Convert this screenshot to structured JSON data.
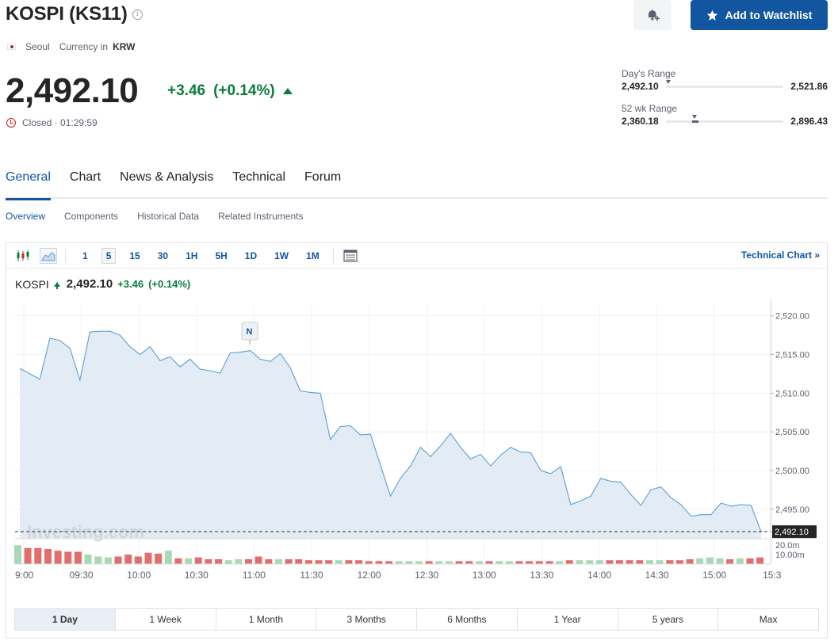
{
  "header": {
    "title": "KOSPI (KS11)",
    "info_icon": "info-icon",
    "bell_icon": "bell-plus-icon",
    "watchlist_label": "Add to Watchlist",
    "watchlist_icon": "star-icon",
    "location": "Seoul",
    "currency_label": "Currency in",
    "currency": "KRW"
  },
  "quote": {
    "price": "2,492.10",
    "change": "+3.46",
    "change_pct": "(+0.14%)",
    "status": "Closed · 01:29:59",
    "up_color": "#0a7c3e"
  },
  "ranges": {
    "day_label": "Day's Range",
    "day_low": "2,492.10",
    "day_high": "2,521.86",
    "day_fraction": 0.0,
    "wk52_label": "52 wk Range",
    "wk52_low": "2,360.18",
    "wk52_high": "2,896.43",
    "wk52_fraction": 0.246
  },
  "tabs": [
    "General",
    "Chart",
    "News & Analysis",
    "Technical",
    "Forum"
  ],
  "subtabs": [
    "Overview",
    "Components",
    "Historical Data",
    "Related Instruments"
  ],
  "toolbar": {
    "candle_icon": "candlestick-icon",
    "area_icon": "area-chart-icon",
    "timeframes": [
      "1",
      "5",
      "15",
      "30",
      "1H",
      "5H",
      "1D",
      "1W",
      "1M"
    ],
    "active_timeframe": "5",
    "table_icon": "table-icon",
    "technical_link": "Technical Chart »"
  },
  "legend": {
    "name": "KOSPI",
    "value": "2,492.10",
    "change": "+3.46",
    "change_pct": "(+0.14%)"
  },
  "watermark": "Investing.com",
  "news_marker": "N",
  "chart_data": {
    "type": "area",
    "y_ticks": [
      "2,520.00",
      "2,515.00",
      "2,510.00",
      "2,505.00",
      "2,500.00",
      "2,495.00"
    ],
    "y_tick_values": [
      2520,
      2515,
      2510,
      2505,
      2500,
      2495
    ],
    "ylim": [
      2491.2,
      2521.4
    ],
    "last_label": "2,492.10",
    "last_value": 2492.1,
    "x_labels": [
      "9:00",
      "09:30",
      "10:00",
      "10:30",
      "11:00",
      "11:30",
      "12:00",
      "12:30",
      "13:00",
      "13:30",
      "14:00",
      "14:30",
      "15:00",
      "15:3"
    ],
    "values": [
      2513.2,
      2512.5,
      2511.8,
      2517.1,
      2516.8,
      2515.8,
      2511.7,
      2517.9,
      2518.0,
      2518.0,
      2517.5,
      2516.0,
      2515.0,
      2516.0,
      2514.2,
      2514.7,
      2513.4,
      2514.4,
      2513.1,
      2512.9,
      2512.6,
      2515.2,
      2515.3,
      2515.5,
      2514.4,
      2514.1,
      2515.1,
      2513.3,
      2510.3,
      2510.1,
      2510.0,
      2504.0,
      2505.7,
      2505.8,
      2504.6,
      2504.7,
      2500.7,
      2496.7,
      2499.0,
      2500.6,
      2503.0,
      2501.8,
      2503.2,
      2504.8,
      2503.0,
      2501.5,
      2502.1,
      2500.6,
      2502.0,
      2503.0,
      2502.4,
      2502.3,
      2500.0,
      2499.6,
      2500.5,
      2495.6,
      2496.1,
      2496.7,
      2499.0,
      2498.6,
      2498.5,
      2496.9,
      2495.5,
      2497.5,
      2497.9,
      2496.5,
      2495.6,
      2494.1,
      2494.3,
      2494.3,
      2495.8,
      2495.4,
      2495.6,
      2495.5,
      2492.1
    ],
    "volume_ticks": [
      "20.0m",
      "10.00m"
    ],
    "volume_tick_values": [
      20,
      10
    ],
    "volume_max": 21,
    "volumes": [
      20,
      17,
      17,
      16,
      14,
      13,
      13,
      10,
      8,
      7,
      8,
      10,
      8,
      12,
      11,
      14,
      6,
      6,
      7,
      5,
      5,
      4,
      5,
      5,
      8,
      5,
      5,
      5,
      5,
      4,
      4,
      4,
      4,
      4,
      4,
      3,
      3,
      3,
      3,
      3,
      3,
      3,
      3,
      3,
      3,
      3,
      3,
      3,
      3,
      3,
      3,
      3,
      3,
      3,
      3,
      4,
      4,
      4,
      4,
      4,
      4,
      4,
      4,
      4,
      4,
      4,
      4,
      5,
      6,
      7,
      6,
      5,
      6,
      6,
      7
    ],
    "volume_up": [
      true,
      false,
      false,
      false,
      false,
      false,
      false,
      true,
      true,
      true,
      false,
      false,
      false,
      false,
      false,
      true,
      false,
      true,
      false,
      false,
      false,
      true,
      true,
      false,
      false,
      false,
      true,
      false,
      false,
      false,
      false,
      false,
      true,
      false,
      false,
      false,
      false,
      false,
      true,
      true,
      true,
      false,
      true,
      true,
      false,
      false,
      true,
      false,
      true,
      true,
      false,
      false,
      false,
      false,
      true,
      false,
      true,
      true,
      true,
      false,
      false,
      false,
      false,
      true,
      true,
      false,
      false,
      false,
      true,
      true,
      true,
      false,
      true,
      false,
      false
    ],
    "colors": {
      "line": "#5a9fd4",
      "fill": "#e3ecf5",
      "vol_up": "#a8d8b6",
      "vol_down": "#e26d6d"
    }
  },
  "periods": [
    "1 Day",
    "1 Week",
    "1 Month",
    "3 Months",
    "6 Months",
    "1 Year",
    "5 years",
    "Max"
  ],
  "active_period": "1 Day"
}
